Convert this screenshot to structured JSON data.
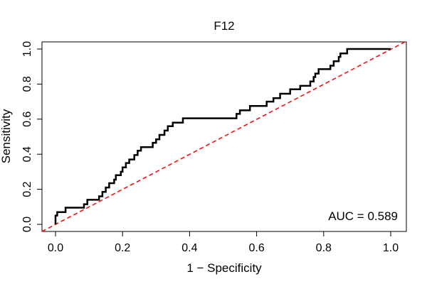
{
  "chart_data": {
    "type": "line",
    "title": "F12",
    "xlabel": "1 − Specificity",
    "ylabel": "Sensitivity",
    "xlim": [
      0,
      1
    ],
    "ylim": [
      0,
      1
    ],
    "x_ticks": [
      "0.0",
      "0.2",
      "0.4",
      "0.6",
      "0.8",
      "1.0"
    ],
    "y_ticks": [
      "0.0",
      "0.2",
      "0.4",
      "0.6",
      "0.8",
      "1.0"
    ],
    "grid": false,
    "annotation": "AUC = 0.589",
    "reference_line": {
      "x": [
        0,
        1
      ],
      "y": [
        0,
        1
      ],
      "color": "#ff0000",
      "style": "dashed"
    },
    "series": [
      {
        "color": "#000000",
        "x": [
          0.0,
          0.0,
          0.005,
          0.005,
          0.01,
          0.01,
          0.03,
          0.03,
          0.085,
          0.085,
          0.095,
          0.095,
          0.13,
          0.13,
          0.14,
          0.14,
          0.15,
          0.15,
          0.16,
          0.16,
          0.175,
          0.175,
          0.18,
          0.18,
          0.195,
          0.195,
          0.2,
          0.2,
          0.21,
          0.21,
          0.22,
          0.22,
          0.235,
          0.235,
          0.245,
          0.245,
          0.255,
          0.255,
          0.29,
          0.29,
          0.3,
          0.3,
          0.31,
          0.31,
          0.325,
          0.325,
          0.33,
          0.33,
          0.335,
          0.335,
          0.345,
          0.345,
          0.35,
          0.35,
          0.36,
          0.36,
          0.375,
          0.375,
          0.38,
          0.38,
          0.39,
          0.39,
          0.54,
          0.54,
          0.55,
          0.55,
          0.58,
          0.58,
          0.63,
          0.63,
          0.65,
          0.65,
          0.67,
          0.67,
          0.7,
          0.7,
          0.73,
          0.73,
          0.76,
          0.76,
          0.77,
          0.77,
          0.775,
          0.775,
          0.785,
          0.785,
          0.82,
          0.82,
          0.83,
          0.83,
          0.845,
          0.845,
          0.85,
          0.85,
          0.86,
          0.86,
          0.865,
          0.865,
          0.87,
          0.87,
          0.9,
          0.9,
          1.0
        ],
        "y": [
          0.0,
          0.05,
          0.05,
          0.07,
          0.07,
          0.07,
          0.07,
          0.095,
          0.095,
          0.115,
          0.115,
          0.14,
          0.14,
          0.16,
          0.16,
          0.185,
          0.185,
          0.21,
          0.21,
          0.235,
          0.235,
          0.255,
          0.255,
          0.28,
          0.28,
          0.3,
          0.3,
          0.325,
          0.325,
          0.35,
          0.35,
          0.37,
          0.37,
          0.395,
          0.395,
          0.42,
          0.42,
          0.44,
          0.44,
          0.465,
          0.465,
          0.485,
          0.485,
          0.51,
          0.51,
          0.535,
          0.535,
          0.535,
          0.535,
          0.56,
          0.56,
          0.56,
          0.56,
          0.58,
          0.58,
          0.58,
          0.58,
          0.58,
          0.58,
          0.605,
          0.605,
          0.605,
          0.605,
          0.63,
          0.63,
          0.65,
          0.65,
          0.675,
          0.675,
          0.7,
          0.7,
          0.72,
          0.72,
          0.745,
          0.745,
          0.77,
          0.77,
          0.79,
          0.79,
          0.815,
          0.815,
          0.84,
          0.84,
          0.86,
          0.86,
          0.885,
          0.885,
          0.905,
          0.905,
          0.93,
          0.93,
          0.955,
          0.955,
          0.975,
          0.975,
          0.975,
          0.975,
          0.975,
          0.975,
          1.0,
          1.0,
          1.0,
          1.0
        ]
      }
    ]
  }
}
